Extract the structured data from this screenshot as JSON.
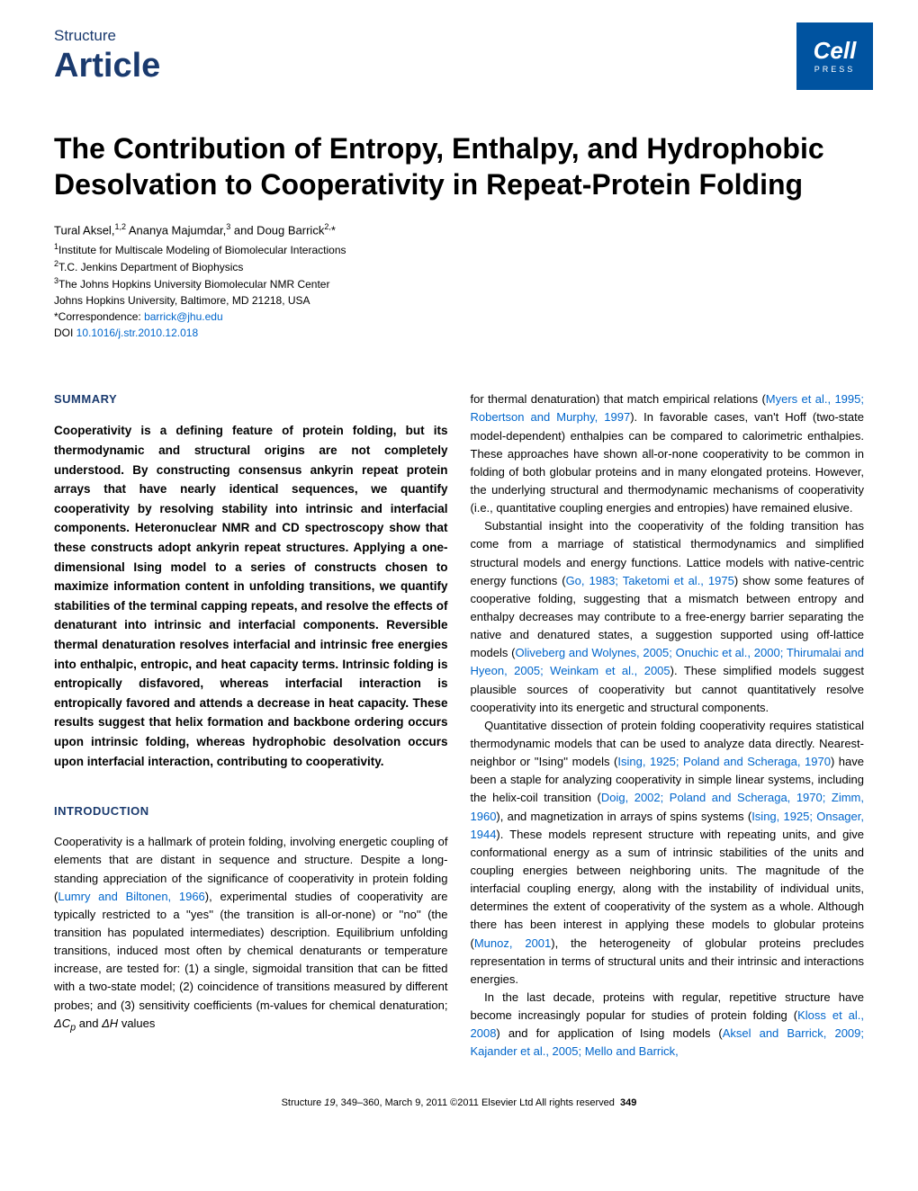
{
  "header": {
    "journal": "Structure",
    "article_type": "Article",
    "logo_main": "Cell",
    "logo_sub": "PRESS"
  },
  "title": "The Contribution of Entropy, Enthalpy, and Hydrophobic Desolvation to Cooperativity in Repeat-Protein Folding",
  "authors_html": "Tural Aksel,<sup>1,2</sup> Ananya Majumdar,<sup>3</sup> and Doug Barrick<sup>2,</sup>*",
  "affiliations": [
    "<sup>1</sup>Institute for Multiscale Modeling of Biomolecular Interactions",
    "<sup>2</sup>T.C. Jenkins Department of Biophysics",
    "<sup>3</sup>The Johns Hopkins University Biomolecular NMR Center",
    "Johns Hopkins University, Baltimore, MD 21218, USA"
  ],
  "correspondence_label": "*Correspondence: ",
  "correspondence_email": "barrick@jhu.edu",
  "doi_label": "DOI ",
  "doi": "10.1016/j.str.2010.12.018",
  "sections": {
    "summary_header": "SUMMARY",
    "summary_text": "Cooperativity is a defining feature of protein folding, but its thermodynamic and structural origins are not completely understood. By constructing consensus ankyrin repeat protein arrays that have nearly identical sequences, we quantify cooperativity by resolving stability into intrinsic and interfacial components. Heteronuclear NMR and CD spectroscopy show that these constructs adopt ankyrin repeat structures. Applying a one-dimensional Ising model to a series of constructs chosen to maximize information content in unfolding transitions, we quantify stabilities of the terminal capping repeats, and resolve the effects of denaturant into intrinsic and interfacial components. Reversible thermal denaturation resolves interfacial and intrinsic free energies into enthalpic, entropic, and heat capacity terms. Intrinsic folding is entropically disfavored, whereas interfacial interaction is entropically favored and attends a decrease in heat capacity. These results suggest that helix formation and backbone ordering occurs upon intrinsic folding, whereas hydrophobic desolvation occurs upon interfacial interaction, contributing to cooperativity.",
    "introduction_header": "INTRODUCTION",
    "intro_para1_pre": "Cooperativity is a hallmark of protein folding, involving energetic coupling of elements that are distant in sequence and structure. Despite a long-standing appreciation of the significance of cooperativity in protein folding (",
    "intro_ref1": "Lumry and Biltonen, 1966",
    "intro_para1_post": "), experimental studies of cooperativity are typically restricted to a ''yes'' (the transition is all-or-none) or ''no'' (the transition has populated intermediates) description. Equilibrium unfolding transitions, induced most often by chemical denaturants or temperature increase, are tested for: (1) a single, sigmoidal transition that can be fitted with a two-state model; (2) coincidence of transitions measured by different probes; and (3) sensitivity coefficients (m-values for chemical denaturation; ",
    "intro_dcp": "ΔC",
    "intro_p_sub": "p",
    "intro_and": " and ",
    "intro_dh": "ΔH",
    "intro_values": " values",
    "right_para1_pre": "for thermal denaturation) that match empirical relations (",
    "right_ref1": "Myers et al., 1995; Robertson and Murphy, 1997",
    "right_para1_post": "). In favorable cases, van't Hoff (two-state model-dependent) enthalpies can be compared to calorimetric enthalpies. These approaches have shown all-or-none cooperativity to be common in folding of both globular proteins and in many elongated proteins. However, the underlying structural and thermodynamic mechanisms of cooperativity (i.e., quantitative coupling energies and entropies) have remained elusive.",
    "right_para2_pre": "Substantial insight into the cooperativity of the folding transition has come from a marriage of statistical thermodynamics and simplified structural models and energy functions. Lattice models with native-centric energy functions (",
    "right_ref2": "Go, 1983; Taketomi et al., 1975",
    "right_para2_mid": ") show some features of cooperative folding, suggesting that a mismatch between entropy and enthalpy decreases may contribute to a free-energy barrier separating the native and denatured states, a suggestion supported using off-lattice models (",
    "right_ref3": "Oliveberg and Wolynes, 2005; Onuchic et al., 2000; Thirumalai and Hyeon, 2005; Weinkam et al., 2005",
    "right_para2_post": "). These simplified models suggest plausible sources of cooperativity but cannot quantitatively resolve cooperativity into its energetic and structural components.",
    "right_para3_pre": "Quantitative dissection of protein folding cooperativity requires statistical thermodynamic models that can be used to analyze data directly. Nearest-neighbor or ''Ising'' models (",
    "right_ref4": "Ising, 1925; Poland and Scheraga, 1970",
    "right_para3_mid1": ") have been a staple for analyzing cooperativity in simple linear systems, including the helix-coil transition (",
    "right_ref5": "Doig, 2002; Poland and Scheraga, 1970; Zimm, 1960",
    "right_para3_mid2": "), and magnetization in arrays of spins systems (",
    "right_ref6": "Ising, 1925; Onsager, 1944",
    "right_para3_mid3": "). These models represent structure with repeating units, and give conformational energy as a sum of intrinsic stabilities of the units and coupling energies between neighboring units. The magnitude of the interfacial coupling energy, along with the instability of individual units, determines the extent of cooperativity of the system as a whole. Although there has been interest in applying these models to globular proteins (",
    "right_ref7": "Munoz, 2001",
    "right_para3_post": "), the heterogeneity of globular proteins precludes representation in terms of structural units and their intrinsic and interactions energies.",
    "right_para4_pre": "In the last decade, proteins with regular, repetitive structure have become increasingly popular for studies of protein folding (",
    "right_ref8": "Kloss et al., 2008",
    "right_para4_mid": ") and for application of Ising models (",
    "right_ref9": "Aksel and Barrick, 2009; Kajander et al., 2005; Mello and Barrick,"
  },
  "footer": {
    "text_pre": "Structure ",
    "volume": "19",
    "text_mid": ", 349–360, March 9, 2011 ©2011 Elsevier Ltd All rights reserved",
    "page": "349"
  },
  "colors": {
    "brand_blue": "#1a3a6e",
    "link_blue": "#0066cc",
    "cell_press_bg": "#0053a0"
  }
}
